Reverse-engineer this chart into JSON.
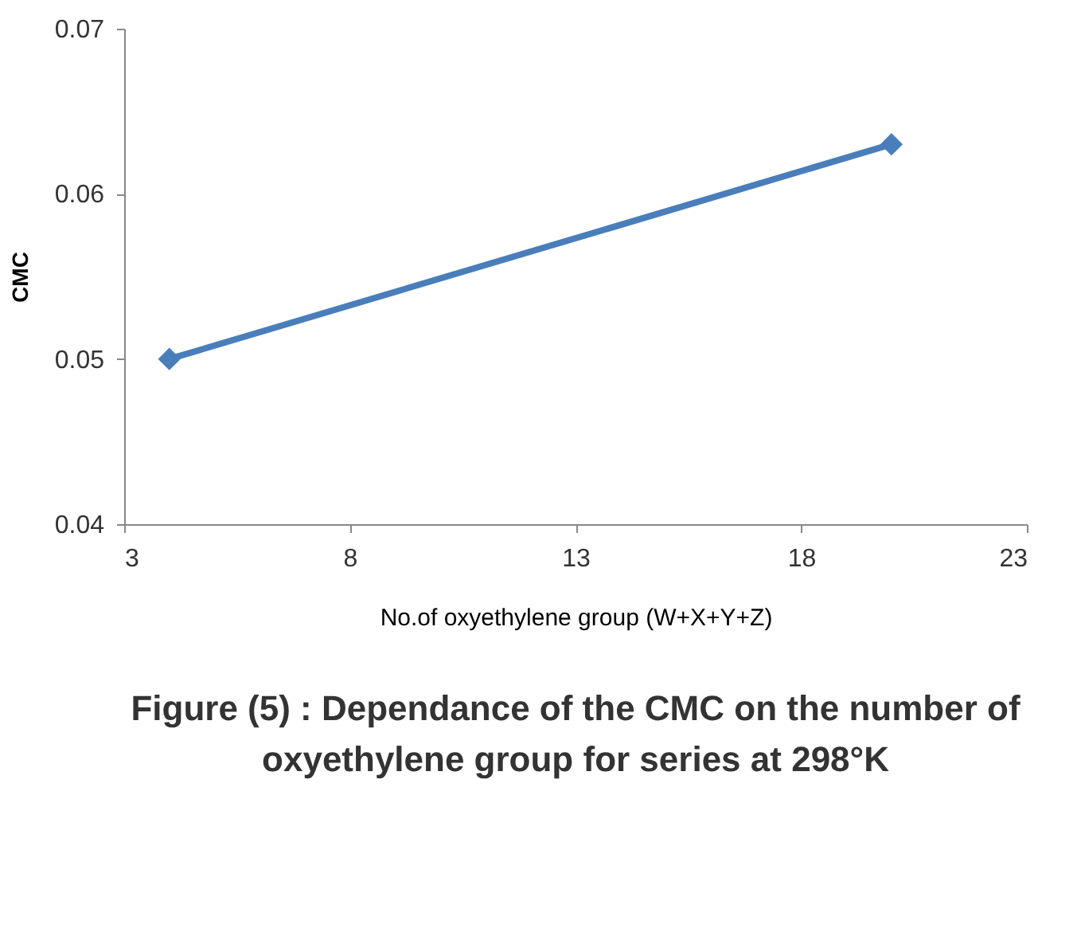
{
  "chart_data": {
    "type": "line",
    "xlabel": "No.of oxyethylene group (W+X+Y+Z)",
    "ylabel": "CMC",
    "x": [
      4,
      20
    ],
    "series": [
      {
        "color": "#4a7ebb",
        "values": [
          0.05,
          0.063
        ]
      }
    ],
    "xlim": [
      3,
      23
    ],
    "xticks": [
      3,
      8,
      13,
      18,
      23
    ],
    "ylim": [
      0.04,
      0.07
    ],
    "yticks": [
      0.04,
      0.05,
      0.06,
      0.07
    ],
    "grid": false,
    "legend": false,
    "marker": "diamond",
    "line_style": "solid",
    "annotations": [
      "Figure (5) : Dependance of the CMC on the number of oxyethylene group for series at 298°K"
    ]
  }
}
